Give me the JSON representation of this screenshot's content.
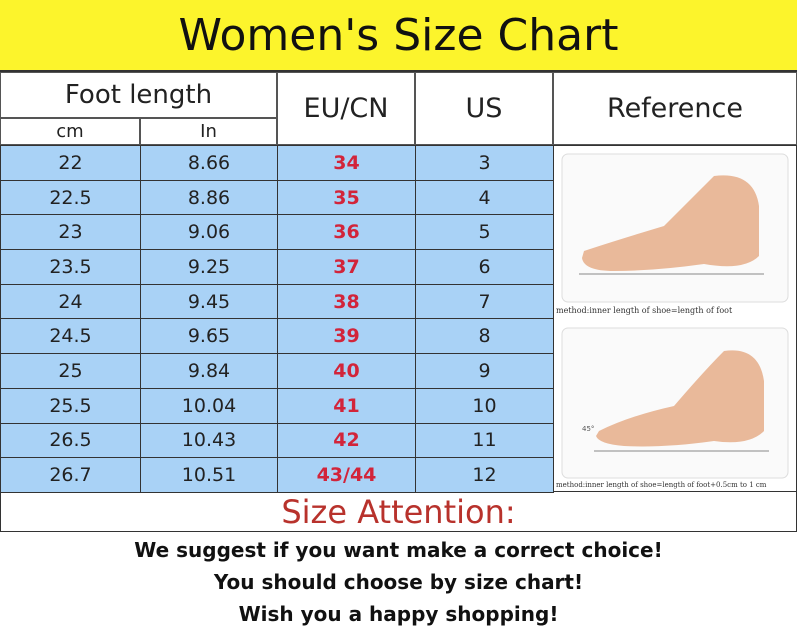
{
  "title": "Women's Size Chart",
  "headers": {
    "foot_length": "Foot length",
    "cm": "cm",
    "in": "In",
    "eu": "EU/CN",
    "us": "US",
    "reference": "Reference"
  },
  "chart_data": {
    "type": "table",
    "columns": [
      "cm",
      "In",
      "EU/CN",
      "US"
    ],
    "rows": [
      [
        "22",
        "8.66",
        "34",
        "3"
      ],
      [
        "22.5",
        "8.86",
        "35",
        "4"
      ],
      [
        "23",
        "9.06",
        "36",
        "5"
      ],
      [
        "23.5",
        "9.25",
        "37",
        "6"
      ],
      [
        "24",
        "9.45",
        "38",
        "7"
      ],
      [
        "24.5",
        "9.65",
        "39",
        "8"
      ],
      [
        "25",
        "9.84",
        "40",
        "9"
      ],
      [
        "25.5",
        "10.04",
        "41",
        "10"
      ],
      [
        "26.5",
        "10.43",
        "42",
        "11"
      ],
      [
        "26.7",
        "10.51",
        "43/44",
        "12"
      ]
    ]
  },
  "reference": {
    "caption1": "method:inner length of shoe=length of foot",
    "caption2": "method:inner length of shoe=length of foot+0.5cm to 1 cm",
    "angle_label": "45°"
  },
  "attention": {
    "heading": "Size Attention:",
    "lines": [
      "We suggest if you want make a correct choice!",
      "You should choose by size chart!",
      "Wish you a happy shopping!"
    ]
  },
  "colors": {
    "title_bg": "#fcf42c",
    "cell_bg": "#a9d2f6",
    "eu_text": "#d2243a",
    "attention": "#b8322c"
  }
}
